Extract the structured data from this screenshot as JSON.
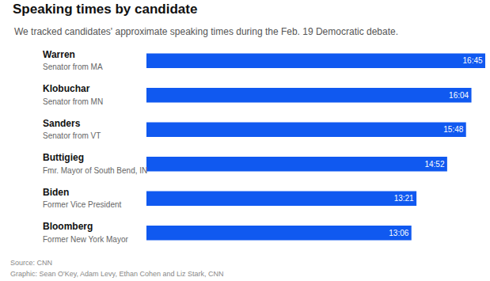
{
  "chart_data": {
    "type": "bar",
    "orientation": "horizontal",
    "title": "Speaking times by candidate",
    "subtitle": "We tracked candidates' approximate speaking times during the Feb. 19 Democratic debate.",
    "categories": [
      "Warren",
      "Klobuchar",
      "Sanders",
      "Buttigieg",
      "Biden",
      "Bloomberg"
    ],
    "descriptions": [
      "Senator from MA",
      "Senator from MN",
      "Senator from VT",
      "Fmr. Mayor of South Bend, IN",
      "Former Vice President",
      "Former New York Mayor"
    ],
    "values": [
      1005,
      964,
      948,
      892,
      801,
      786
    ],
    "value_labels": [
      "16:45",
      "16:04",
      "15:48",
      "14:52",
      "13:21",
      "13:06"
    ],
    "color": "#1059f0",
    "xlim": [
      0,
      1005
    ],
    "data_labels": true,
    "tick_labels": "y",
    "grid": false,
    "annotations": [
      "Source: CNN",
      "Graphic: Sean O'Key, Adam Levy, Ethan Cohen and Liz Stark, CNN"
    ]
  }
}
